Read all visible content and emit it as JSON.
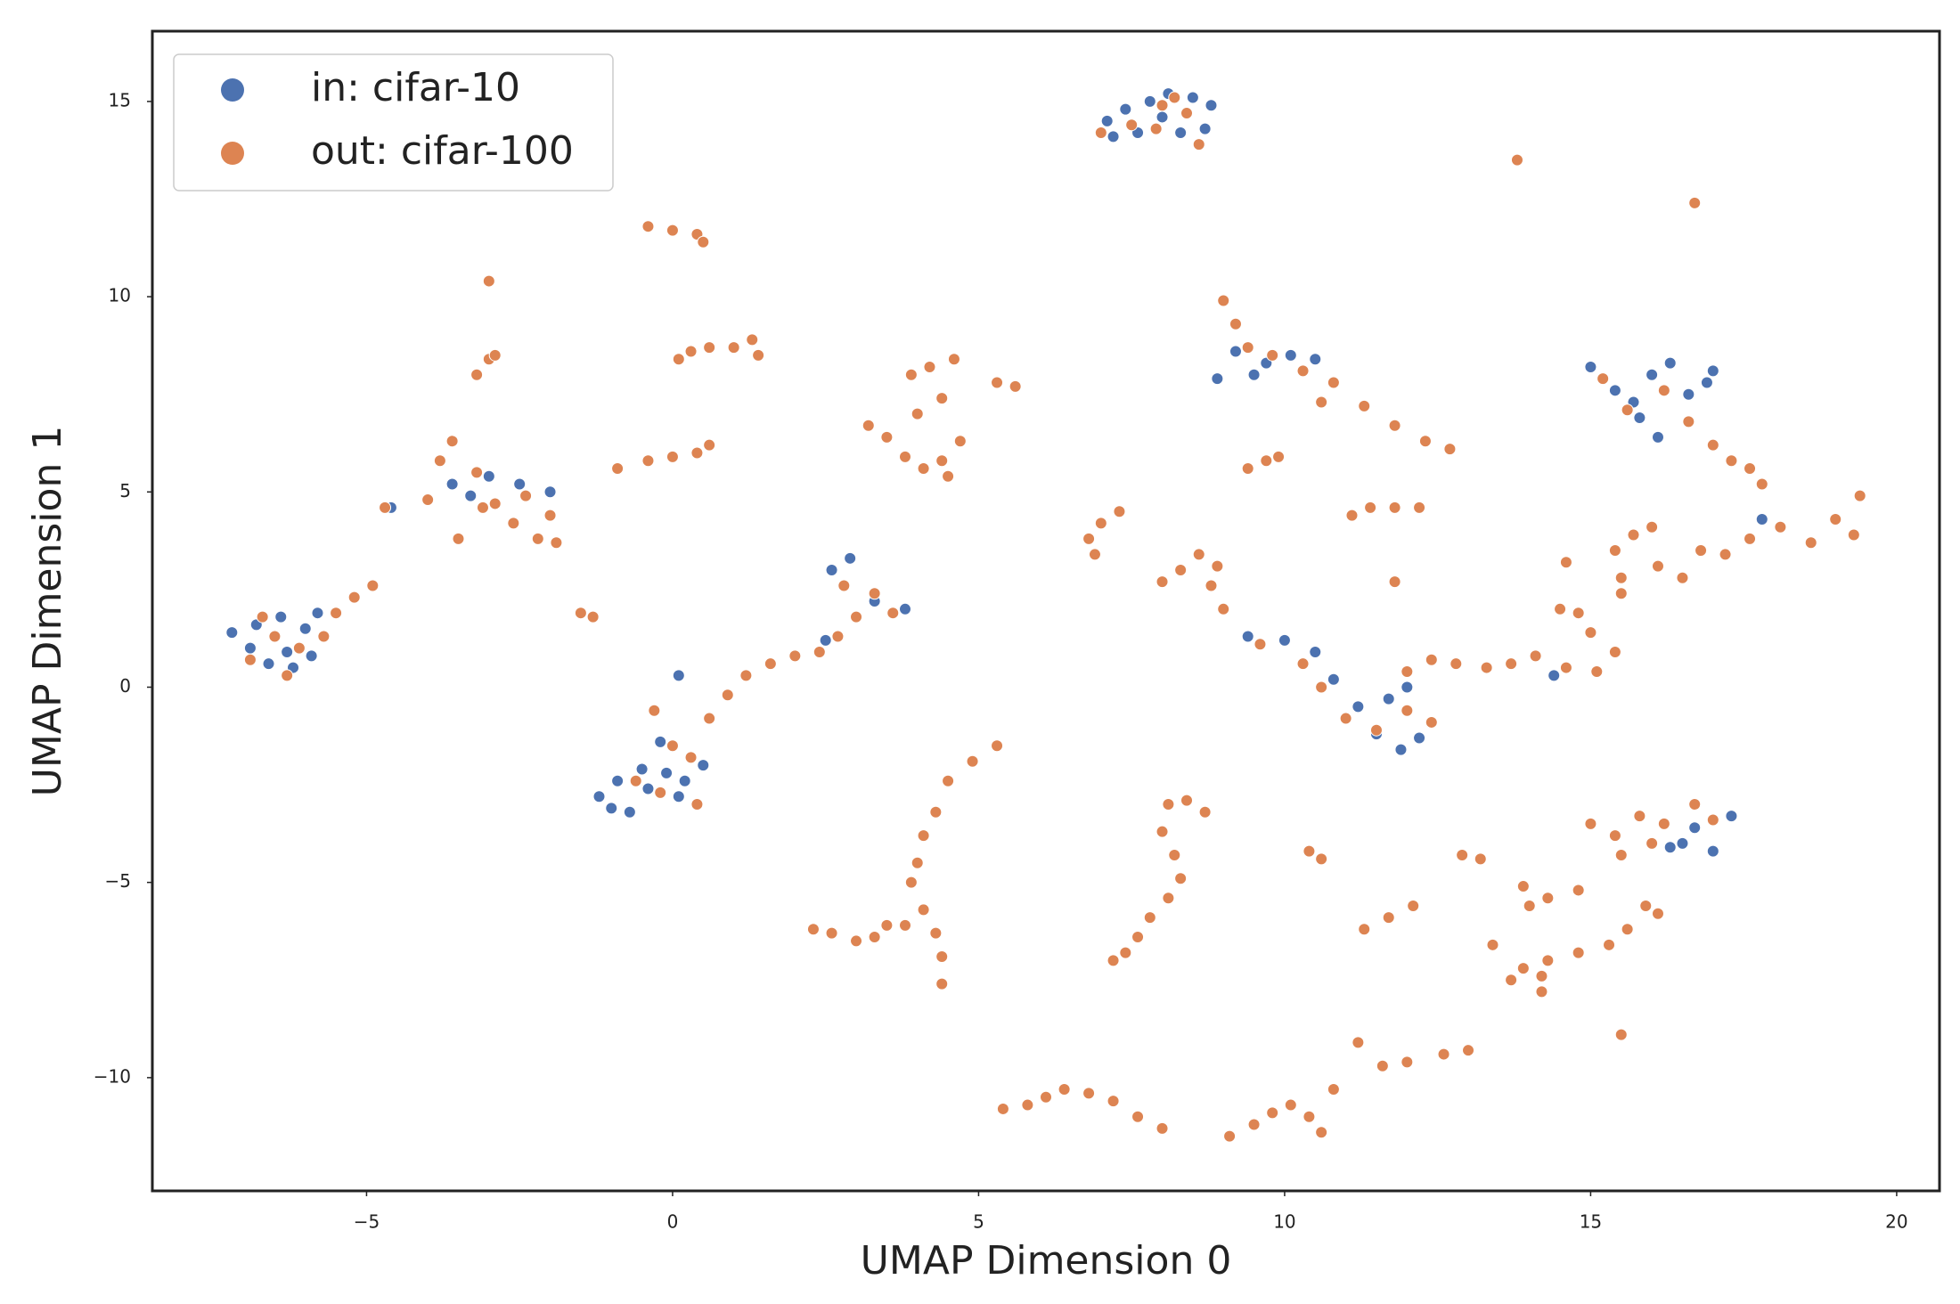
{
  "chart_data": {
    "type": "scatter",
    "x_label": "UMAP Dimension 0",
    "y_label": "UMAP Dimension 1",
    "xlim": [
      -8.5,
      20.7
    ],
    "ylim": [
      -12.9,
      16.8
    ],
    "xticks": [
      {
        "value": -5,
        "label": "−5"
      },
      0,
      5,
      10,
      15,
      20
    ],
    "yticks": [
      {
        "value": -10,
        "label": "−10"
      },
      {
        "value": -5,
        "label": "−5"
      },
      0,
      5,
      10,
      15
    ],
    "grid": false,
    "legend": "upper left",
    "series": [
      {
        "name": "in: cifar-10",
        "color": "#4c72b0",
        "x": [
          7.1,
          7.4,
          7.8,
          8.1,
          8.5,
          8.8,
          8.7,
          8.3,
          7.6,
          7.2,
          8.0,
          -7.2,
          -6.9,
          -6.6,
          -6.3,
          -6.0,
          -5.8,
          -6.4,
          -6.8,
          -6.2,
          -5.9,
          -4.6,
          -3.6,
          -3.0,
          -2.5,
          -2.0,
          -3.3,
          -1.2,
          -1.0,
          -0.7,
          -0.4,
          -0.1,
          0.2,
          0.5,
          -0.5,
          -0.9,
          0.1,
          -0.2,
          0.1,
          2.6,
          2.9,
          3.3,
          3.8,
          2.5,
          8.9,
          9.2,
          9.7,
          10.1,
          10.5,
          9.5,
          9.4,
          10.0,
          10.5,
          10.8,
          11.2,
          11.5,
          11.9,
          12.2,
          11.7,
          12.0,
          14.4,
          15.0,
          15.4,
          15.7,
          16.0,
          16.3,
          16.6,
          17.0,
          16.1,
          15.8,
          16.9,
          17.8,
          16.3,
          16.7,
          17.0,
          17.3,
          16.5
        ],
        "values": [
          14.5,
          14.8,
          15.0,
          15.2,
          15.1,
          14.9,
          14.3,
          14.2,
          14.2,
          14.1,
          14.6,
          1.4,
          1.0,
          0.6,
          0.9,
          1.5,
          1.9,
          1.8,
          1.6,
          0.5,
          0.8,
          4.6,
          5.2,
          5.4,
          5.2,
          5.0,
          4.9,
          -2.8,
          -3.1,
          -3.2,
          -2.6,
          -2.2,
          -2.4,
          -2.0,
          -2.1,
          -2.4,
          -2.8,
          -1.4,
          0.3,
          3.0,
          3.3,
          2.2,
          2.0,
          1.2,
          7.9,
          8.6,
          8.3,
          8.5,
          8.4,
          8.0,
          1.3,
          1.2,
          0.9,
          0.2,
          -0.5,
          -1.2,
          -1.6,
          -1.3,
          -0.3,
          0.0,
          0.3,
          8.2,
          7.6,
          7.3,
          8.0,
          8.3,
          7.5,
          8.1,
          6.4,
          6.9,
          7.8,
          4.3,
          -4.1,
          -3.6,
          -4.2,
          -3.3,
          -4.0
        ]
      },
      {
        "name": "out: cifar-100",
        "color": "#dd8452",
        "x": [
          7.0,
          7.5,
          8.0,
          8.4,
          8.6,
          8.2,
          7.9,
          13.8,
          16.7,
          -0.4,
          0,
          0.4,
          0.5,
          -3,
          -3.2,
          -3.0,
          -2.9,
          0.1,
          0.3,
          0.6,
          1.0,
          1.3,
          1.4,
          -0.9,
          -0.4,
          0,
          0.4,
          0.6,
          -6.9,
          -6.5,
          -6.1,
          -5.7,
          -5.5,
          -5.2,
          -4.9,
          -6.7,
          -6.3,
          -1.5,
          -1.3,
          -4.7,
          -4.0,
          -3.8,
          -3.6,
          -3.2,
          -2.9,
          -2.6,
          -2.2,
          -1.9,
          -2.0,
          -3.5,
          -3.1,
          -2.4,
          3.2,
          3.5,
          3.8,
          4.1,
          4.4,
          4.0,
          3.9,
          4.2,
          4.6,
          4.4,
          4.7,
          4.5,
          5.3,
          5.6,
          6.8,
          7.0,
          7.3,
          6.9,
          -0.3,
          0.0,
          0.3,
          0.6,
          0.9,
          1.2,
          1.6,
          2.0,
          2.4,
          2.7,
          3.0,
          3.3,
          3.6,
          2.8,
          -0.6,
          -0.2,
          0.4,
          5.3,
          4.9,
          4.5,
          4.3,
          4.1,
          4.0,
          3.9,
          4.1,
          4.3,
          4.4,
          4.4,
          3.8,
          3.5,
          2.3,
          2.6,
          3.0,
          3.3,
          5.4,
          5.8,
          6.1,
          6.4,
          6.8,
          7.2,
          7.6,
          8.0,
          7.2,
          7.4,
          7.6,
          7.8,
          8.1,
          8.3,
          8.2,
          8.0,
          8.1,
          8.4,
          8.7,
          9.1,
          9.5,
          9.8,
          10.1,
          10.4,
          10.6,
          10.8,
          10.4,
          10.6,
          11.3,
          11.7,
          12.1,
          11.2,
          11.6,
          12.0,
          12.6,
          13.0,
          12.9,
          13.2,
          9.4,
          9.7,
          9.9,
          8.8,
          8.3,
          8.6,
          8.9,
          8.0,
          9.0,
          9.0,
          9.2,
          9.4,
          9.8,
          10.3,
          10.8,
          11.3,
          11.8,
          12.3,
          12.7,
          10.6,
          11.1,
          11.4,
          11.8,
          12.2,
          11.8,
          9.6,
          10.3,
          10.6,
          11.0,
          11.5,
          12.0,
          12.4,
          12.0,
          12.4,
          12.8,
          13.3,
          13.7,
          14.1,
          14.6,
          15.1,
          15.4,
          15.0,
          14.8,
          14.5,
          15.5,
          14.6,
          15.4,
          15.7,
          16.1,
          16.5,
          16.8,
          17.2,
          17.6,
          18.1,
          18.6,
          19.0,
          19.4,
          19.3,
          17.8,
          16.0,
          15.5,
          15.2,
          15.6,
          16.2,
          16.6,
          17.0,
          17.3,
          17.6,
          16.7,
          16.2,
          15.8,
          15.4,
          15.0,
          15.5,
          16.0,
          17.0,
          14.8,
          14.3,
          14.0,
          13.9,
          16.1,
          15.9,
          15.6,
          15.3,
          14.8,
          14.3,
          13.4,
          13.9,
          13.7,
          14.2,
          14.2,
          15.5
        ],
        "values": [
          14.2,
          14.4,
          14.9,
          14.7,
          13.9,
          15.1,
          14.3,
          13.5,
          12.4,
          11.8,
          11.7,
          11.6,
          11.4,
          10.4,
          8.0,
          8.4,
          8.5,
          8.4,
          8.6,
          8.7,
          8.7,
          8.9,
          8.5,
          5.6,
          5.8,
          5.9,
          6.0,
          6.2,
          0.7,
          1.3,
          1.0,
          1.3,
          1.9,
          2.3,
          2.6,
          1.8,
          0.3,
          1.9,
          1.8,
          4.6,
          4.8,
          5.8,
          6.3,
          5.5,
          4.7,
          4.2,
          3.8,
          3.7,
          4.4,
          3.8,
          4.6,
          4.9,
          6.7,
          6.4,
          5.9,
          5.6,
          5.8,
          7.0,
          8.0,
          8.2,
          8.4,
          7.4,
          6.3,
          5.4,
          7.8,
          7.7,
          3.8,
          4.2,
          4.5,
          3.4,
          -0.6,
          -1.5,
          -1.8,
          -0.8,
          -0.2,
          0.3,
          0.6,
          0.8,
          0.9,
          1.3,
          1.8,
          2.4,
          1.9,
          2.6,
          -2.4,
          -2.7,
          -3.0,
          -1.5,
          -1.9,
          -2.4,
          -3.2,
          -3.8,
          -4.5,
          -5.0,
          -5.7,
          -6.3,
          -6.9,
          -7.6,
          -6.1,
          -6.1,
          -6.2,
          -6.3,
          -6.5,
          -6.4,
          -10.8,
          -10.7,
          -10.5,
          -10.3,
          -10.4,
          -10.6,
          -11.0,
          -11.3,
          -7.0,
          -6.8,
          -6.4,
          -5.9,
          -5.4,
          -4.9,
          -4.3,
          -3.7,
          -3.0,
          -2.9,
          -3.2,
          -11.5,
          -11.2,
          -10.9,
          -10.7,
          -11.0,
          -11.4,
          -10.3,
          -4.2,
          -4.4,
          -6.2,
          -5.9,
          -5.6,
          -9.1,
          -9.7,
          -9.6,
          -9.4,
          -9.3,
          -4.3,
          -4.4,
          5.6,
          5.8,
          5.9,
          2.6,
          3.0,
          3.4,
          3.1,
          2.7,
          2.0,
          9.9,
          9.3,
          8.7,
          8.5,
          8.1,
          7.8,
          7.2,
          6.7,
          6.3,
          6.1,
          7.3,
          4.4,
          4.6,
          4.6,
          4.6,
          2.7,
          1.1,
          0.6,
          0.0,
          -0.8,
          -1.1,
          -0.6,
          -0.9,
          0.4,
          0.7,
          0.6,
          0.5,
          0.6,
          0.8,
          0.5,
          0.4,
          0.9,
          1.4,
          1.9,
          2.0,
          2.4,
          3.2,
          3.5,
          3.9,
          3.1,
          2.8,
          3.5,
          3.4,
          3.8,
          4.1,
          3.7,
          4.3,
          4.9,
          3.9,
          5.2,
          4.1,
          2.8,
          7.9,
          7.1,
          7.6,
          6.8,
          6.2,
          5.8,
          5.6,
          -3.0,
          -3.5,
          -3.3,
          -3.8,
          -3.5,
          -4.3,
          -4.0,
          -3.4,
          -5.2,
          -5.4,
          -5.6,
          -5.1,
          -5.8,
          -5.6,
          -6.2,
          -6.6,
          -6.8,
          -7.0,
          -6.6,
          -7.2,
          -7.5,
          -7.4,
          -7.8,
          -8.9
        ]
      }
    ]
  }
}
